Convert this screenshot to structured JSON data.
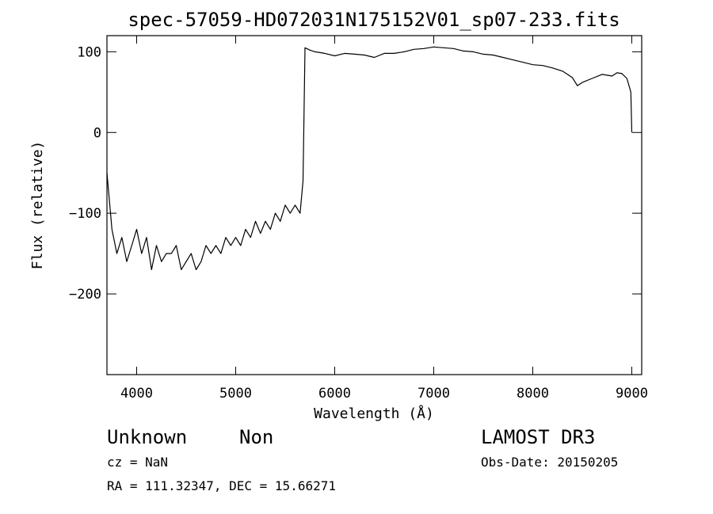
{
  "chart_data": {
    "type": "line",
    "title": "spec-57059-HD072031N175152V01_sp07-233.fits",
    "xlabel": "Wavelength (Å)",
    "ylabel": "Flux (relative)",
    "xlim": [
      3700,
      9100
    ],
    "ylim": [
      -300,
      120
    ],
    "x_ticks": [
      4000,
      5000,
      6000,
      7000,
      8000,
      9000
    ],
    "x_tick_labels": [
      "4000",
      "5000",
      "6000",
      "7000",
      "8000",
      "9000"
    ],
    "y_ticks": [
      100,
      0,
      -100,
      -200
    ],
    "y_tick_labels": [
      "100",
      "0",
      "−100",
      "−200"
    ],
    "grid": false,
    "series": [
      {
        "name": "flux",
        "x": [
          3700,
          3750,
          3800,
          3850,
          3900,
          3950,
          4000,
          4050,
          4100,
          4150,
          4200,
          4250,
          4300,
          4350,
          4400,
          4450,
          4500,
          4550,
          4600,
          4650,
          4700,
          4750,
          4800,
          4850,
          4900,
          4950,
          5000,
          5050,
          5100,
          5150,
          5200,
          5250,
          5300,
          5350,
          5400,
          5450,
          5500,
          5550,
          5600,
          5650,
          5680,
          5700,
          5750,
          5800,
          5900,
          6000,
          6100,
          6200,
          6300,
          6400,
          6500,
          6600,
          6700,
          6800,
          6900,
          7000,
          7100,
          7200,
          7300,
          7400,
          7500,
          7600,
          7700,
          7800,
          7900,
          8000,
          8100,
          8200,
          8300,
          8400,
          8450,
          8500,
          8600,
          8700,
          8800,
          8850,
          8900,
          8950,
          8990,
          9000
        ],
        "values": [
          -50,
          -120,
          -150,
          -130,
          -160,
          -140,
          -120,
          -150,
          -130,
          -170,
          -140,
          -160,
          -150,
          -150,
          -140,
          -170,
          -160,
          -150,
          -170,
          -160,
          -140,
          -150,
          -140,
          -150,
          -130,
          -140,
          -130,
          -140,
          -120,
          -130,
          -110,
          -125,
          -110,
          -120,
          -100,
          -110,
          -90,
          -100,
          -90,
          -100,
          -60,
          105,
          102,
          100,
          98,
          95,
          98,
          97,
          96,
          93,
          98,
          98,
          100,
          103,
          104,
          106,
          105,
          104,
          101,
          100,
          97,
          96,
          93,
          90,
          87,
          84,
          83,
          80,
          76,
          68,
          58,
          62,
          67,
          72,
          70,
          74,
          73,
          67,
          50,
          0
        ]
      }
    ]
  },
  "labels": {
    "class": "Unknown",
    "subclass": "Non",
    "survey": "LAMOST DR3",
    "cz": "cz = NaN",
    "obs_date": "Obs-Date: 20150205",
    "coords": "RA = 111.32347, DEC =  15.66271"
  }
}
